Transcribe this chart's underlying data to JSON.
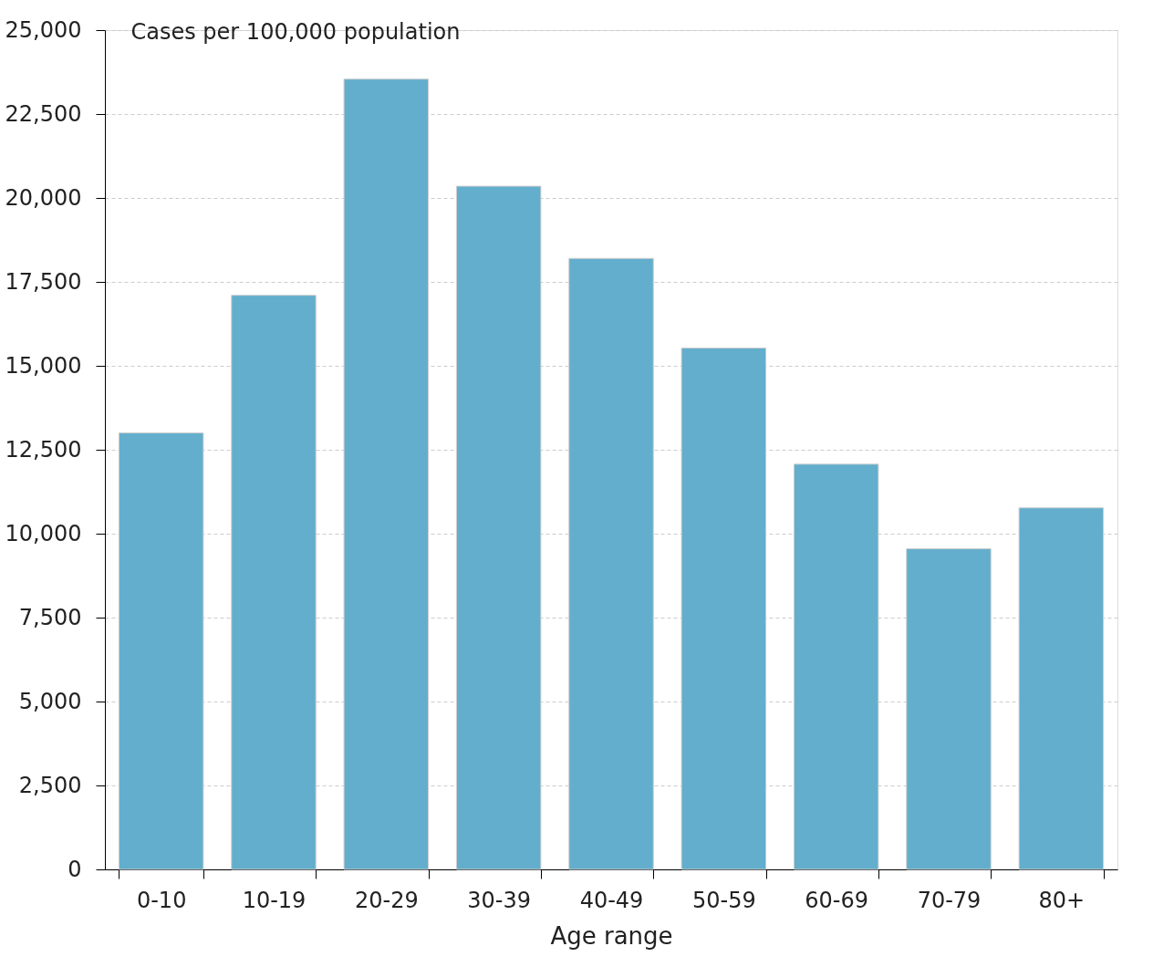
{
  "chart_data": {
    "type": "bar",
    "ylabel": "Cases per 100,000 population",
    "xlabel": "Age range",
    "categories": [
      "0-10",
      "10-19",
      "20-29",
      "30-39",
      "40-49",
      "50-59",
      "60-69",
      "70-79",
      "80+"
    ],
    "values": [
      13000,
      17100,
      23540,
      20350,
      18200,
      15530,
      12070,
      9550,
      10770
    ],
    "color": "#62aecc",
    "ylim": [
      0,
      25000
    ],
    "yticks": [
      0,
      {
        "value": 2500,
        "label": "2,500"
      },
      {
        "value": 5000,
        "label": "5,000"
      },
      {
        "value": 7500,
        "label": "7,500"
      },
      {
        "value": 10000,
        "label": "10,000"
      },
      {
        "value": 12500,
        "label": "12,500"
      },
      {
        "value": 15000,
        "label": "15,000"
      },
      {
        "value": 17500,
        "label": "17,500"
      },
      {
        "value": 20000,
        "label": "20,000"
      },
      {
        "value": 22500,
        "label": "22,500"
      },
      {
        "value": 25000,
        "label": "25,000"
      }
    ],
    "grid": "y"
  }
}
